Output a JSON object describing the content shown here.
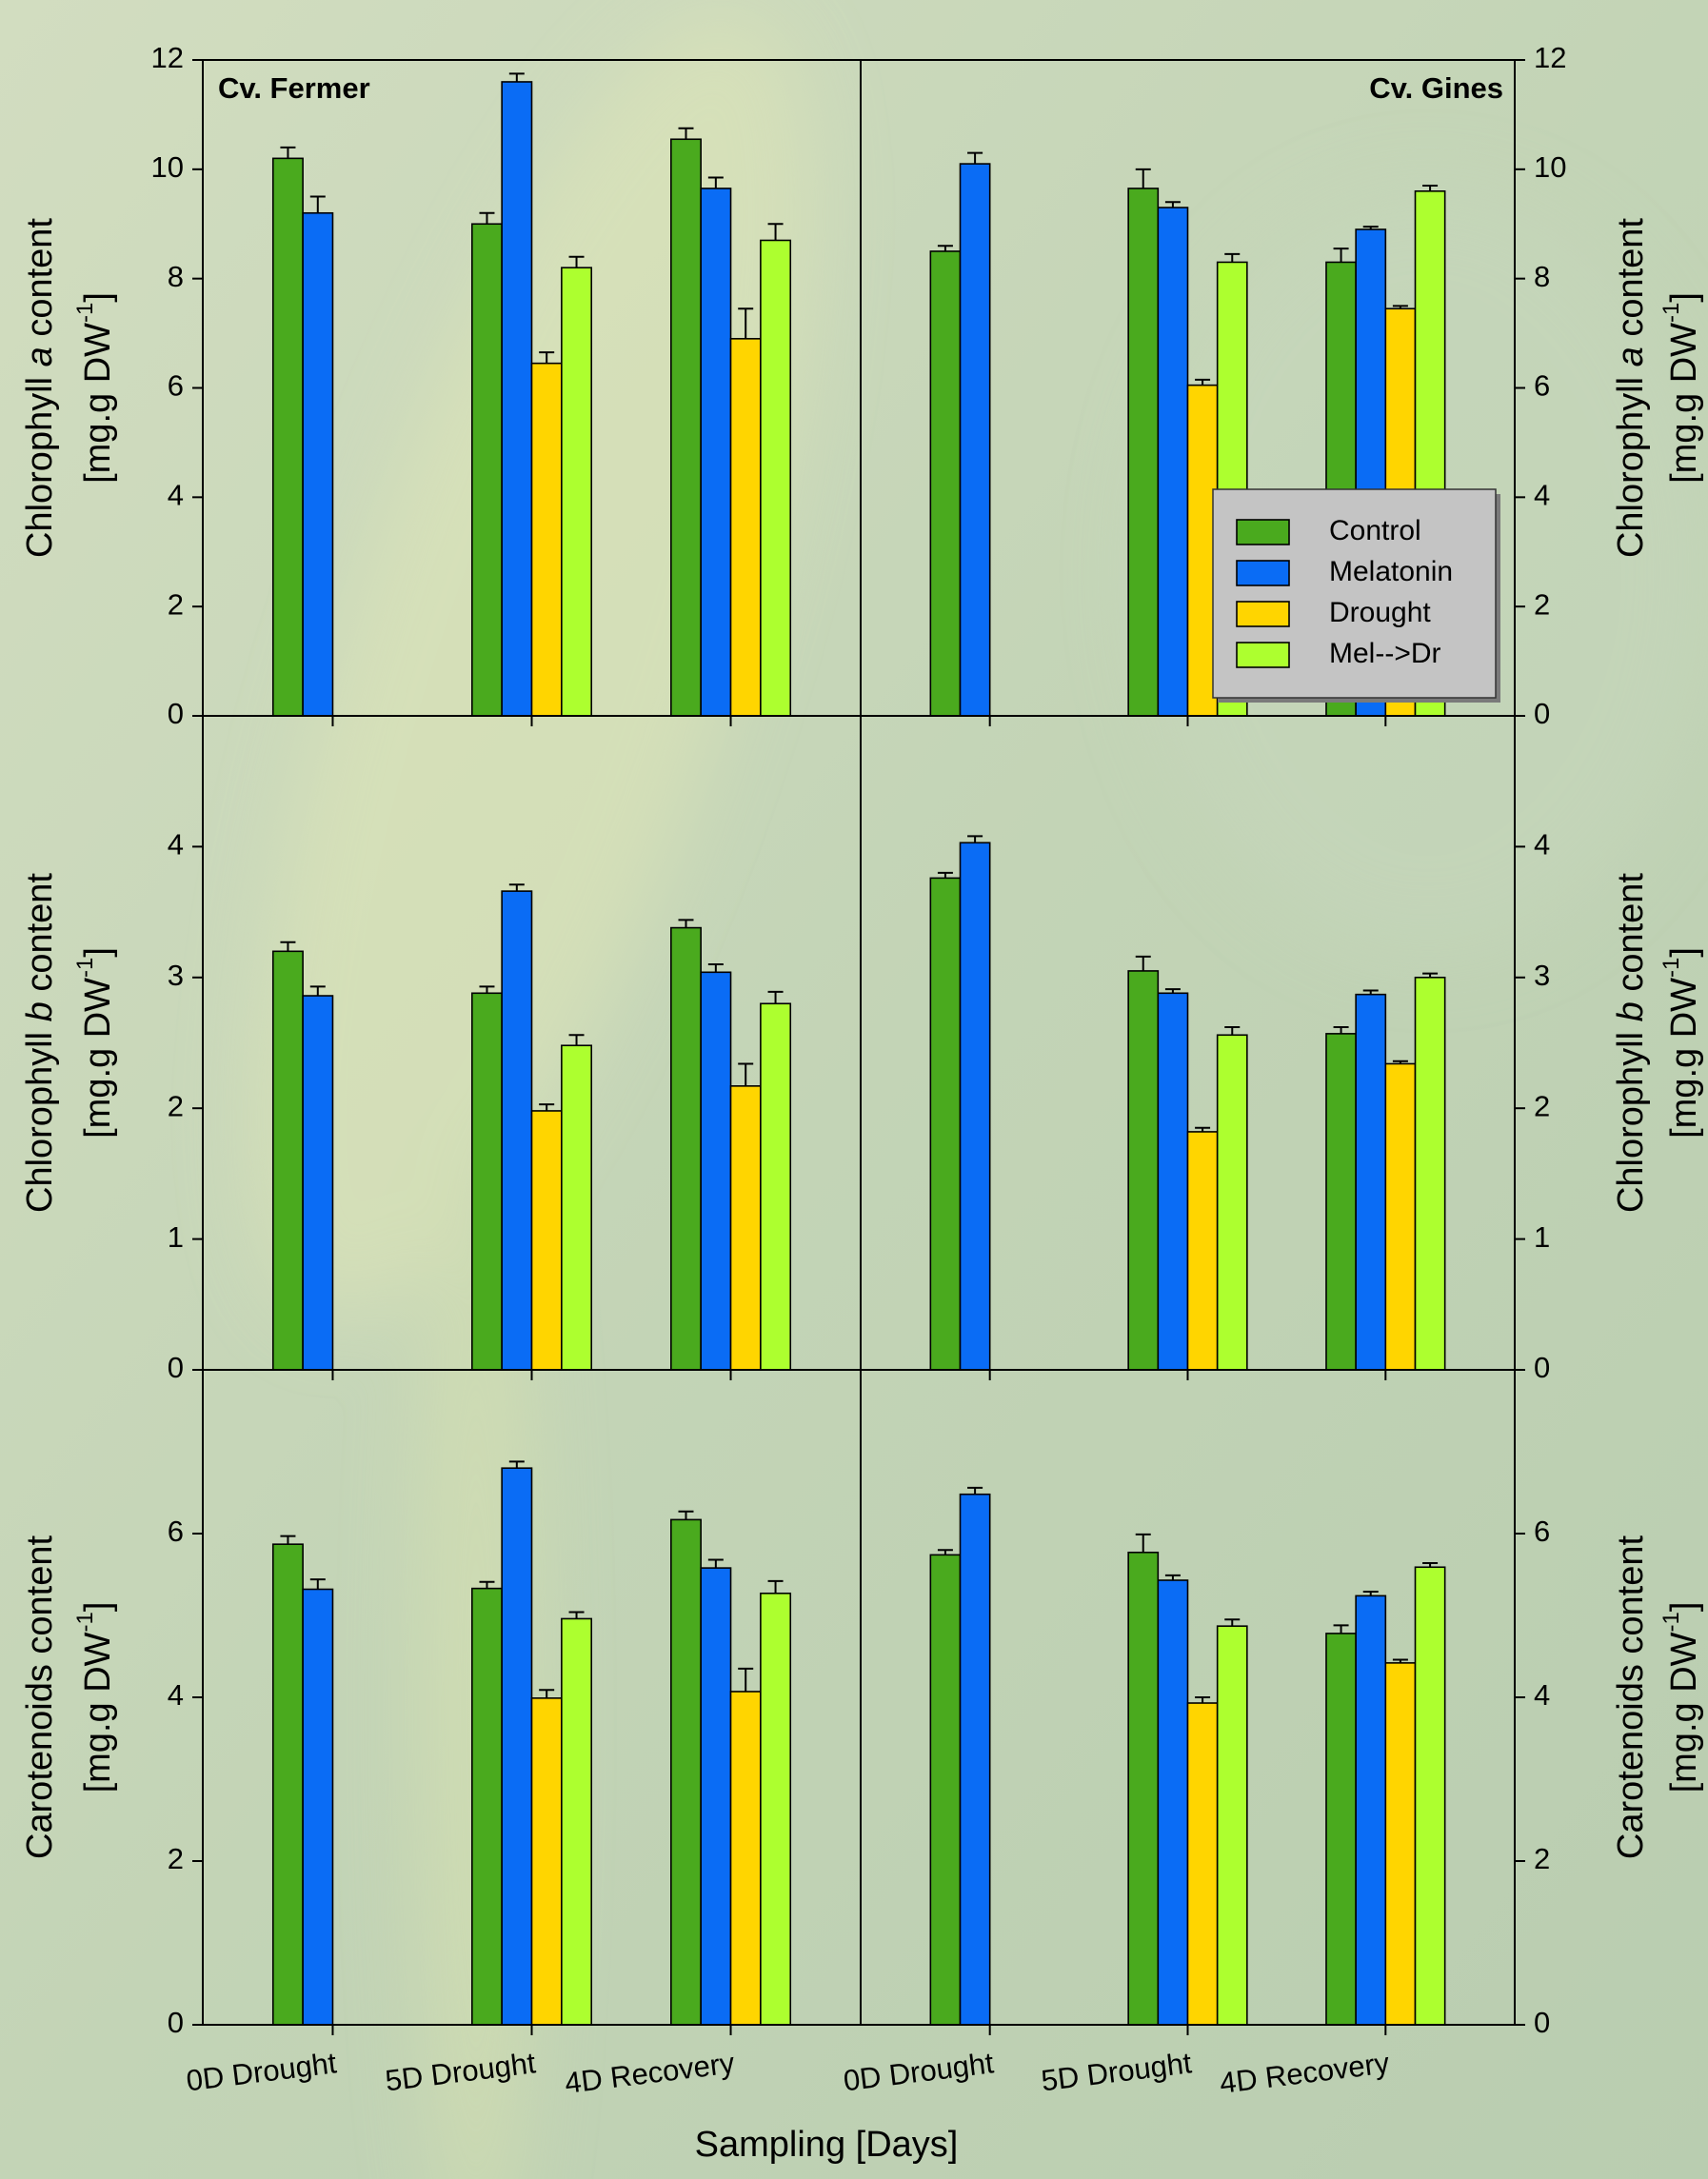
{
  "xlabel": "Sampling [Days]",
  "chart_data": [
    {
      "type": "bar",
      "title": "Cv. Fermer",
      "ylabel": [
        [
          "Chlorophyll ",
          "a",
          " content"
        ],
        [
          "[mg.g DW",
          "-1",
          "]"
        ]
      ],
      "ylim": [
        0,
        12
      ],
      "yticks": [
        0,
        2,
        4,
        6,
        8,
        10,
        12
      ],
      "series": [
        {
          "name": "Control",
          "color": "#4aaa1e",
          "values": [
            10.2,
            9.0,
            10.55
          ],
          "errors": [
            0.2,
            0.2,
            0.2
          ]
        },
        {
          "name": "Melatonin",
          "color": "#0a6cf5",
          "values": [
            9.2,
            11.6,
            9.65
          ],
          "errors": [
            0.3,
            0.15,
            0.2
          ]
        },
        {
          "name": "Drought",
          "color": "#ffd500",
          "values": [
            null,
            6.45,
            6.9
          ],
          "errors": [
            null,
            0.2,
            0.55
          ]
        },
        {
          "name": "Mel-->Dr",
          "color": "#adff2f",
          "values": [
            null,
            8.2,
            8.7
          ],
          "errors": [
            null,
            0.2,
            0.3
          ]
        }
      ]
    },
    {
      "type": "bar",
      "title": "Cv. Gines",
      "ylabel": [
        [
          "Chlorophyll ",
          "a",
          " content"
        ],
        [
          "[mg.g DW",
          "-1",
          "]"
        ]
      ],
      "ylim": [
        0,
        12
      ],
      "yticks": [
        0,
        2,
        4,
        6,
        8,
        10,
        12
      ],
      "legend": "lower right",
      "series": [
        {
          "name": "Control",
          "color": "#4aaa1e",
          "values": [
            8.5,
            9.65,
            8.3
          ],
          "errors": [
            0.1,
            0.35,
            0.25
          ]
        },
        {
          "name": "Melatonin",
          "color": "#0a6cf5",
          "values": [
            10.1,
            9.3,
            8.9
          ],
          "errors": [
            0.2,
            0.1,
            0.05
          ]
        },
        {
          "name": "Drought",
          "color": "#ffd500",
          "values": [
            null,
            6.05,
            7.45
          ],
          "errors": [
            null,
            0.1,
            0.05
          ]
        },
        {
          "name": "Mel-->Dr",
          "color": "#adff2f",
          "values": [
            null,
            8.3,
            9.6
          ],
          "errors": [
            null,
            0.15,
            0.1
          ]
        }
      ]
    },
    {
      "type": "bar",
      "ylabel": [
        [
          "Chlorophyll ",
          "b",
          " content"
        ],
        [
          "[mg.g DW",
          "-1",
          "]"
        ]
      ],
      "ylim": [
        0,
        5
      ],
      "yticks": [
        0,
        1,
        2,
        3,
        4
      ],
      "series": [
        {
          "name": "Control",
          "color": "#4aaa1e",
          "values": [
            3.2,
            2.88,
            3.38
          ],
          "errors": [
            0.07,
            0.05,
            0.06
          ]
        },
        {
          "name": "Melatonin",
          "color": "#0a6cf5",
          "values": [
            2.86,
            3.66,
            3.04
          ],
          "errors": [
            0.07,
            0.05,
            0.06
          ]
        },
        {
          "name": "Drought",
          "color": "#ffd500",
          "values": [
            null,
            1.98,
            2.17
          ],
          "errors": [
            null,
            0.05,
            0.17
          ]
        },
        {
          "name": "Mel-->Dr",
          "color": "#adff2f",
          "values": [
            null,
            2.48,
            2.8
          ],
          "errors": [
            null,
            0.08,
            0.09
          ]
        }
      ]
    },
    {
      "type": "bar",
      "ylabel": [
        [
          "Chlorophyll ",
          "b",
          " content"
        ],
        [
          "[mg.g DW",
          "-1",
          "]"
        ]
      ],
      "ylim": [
        0,
        5
      ],
      "yticks": [
        0,
        1,
        2,
        3,
        4
      ],
      "series": [
        {
          "name": "Control",
          "color": "#4aaa1e",
          "values": [
            3.76,
            3.05,
            2.57
          ],
          "errors": [
            0.04,
            0.11,
            0.05
          ]
        },
        {
          "name": "Melatonin",
          "color": "#0a6cf5",
          "values": [
            4.03,
            2.88,
            2.87
          ],
          "errors": [
            0.05,
            0.03,
            0.03
          ]
        },
        {
          "name": "Drought",
          "color": "#ffd500",
          "values": [
            null,
            1.82,
            2.34
          ],
          "errors": [
            null,
            0.03,
            0.02
          ]
        },
        {
          "name": "Mel-->Dr",
          "color": "#adff2f",
          "values": [
            null,
            2.56,
            3.0
          ],
          "errors": [
            null,
            0.06,
            0.03
          ]
        }
      ]
    },
    {
      "type": "bar",
      "categories": [
        "0D Drought",
        "5D Drought",
        "4D Recovery"
      ],
      "ylabel": [
        [
          "Carotenoids content"
        ],
        [
          "[mg.g DW",
          "-1",
          "]"
        ]
      ],
      "ylim": [
        0,
        8
      ],
      "yticks": [
        0,
        2,
        4,
        6
      ],
      "series": [
        {
          "name": "Control",
          "color": "#4aaa1e",
          "values": [
            5.87,
            5.33,
            6.17
          ],
          "errors": [
            0.1,
            0.08,
            0.1
          ]
        },
        {
          "name": "Melatonin",
          "color": "#0a6cf5",
          "values": [
            5.32,
            6.8,
            5.58
          ],
          "errors": [
            0.12,
            0.08,
            0.1
          ]
        },
        {
          "name": "Drought",
          "color": "#ffd500",
          "values": [
            null,
            3.99,
            4.07
          ],
          "errors": [
            null,
            0.1,
            0.28
          ]
        },
        {
          "name": "Mel-->Dr",
          "color": "#adff2f",
          "values": [
            null,
            4.96,
            5.27
          ],
          "errors": [
            null,
            0.08,
            0.15
          ]
        }
      ]
    },
    {
      "type": "bar",
      "categories": [
        "0D Drought",
        "5D Drought",
        "4D Recovery"
      ],
      "ylabel": [
        [
          "Carotenoids content"
        ],
        [
          "[mg.g DW",
          "-1",
          "]"
        ]
      ],
      "ylim": [
        0,
        8
      ],
      "yticks": [
        0,
        2,
        4,
        6
      ],
      "series": [
        {
          "name": "Control",
          "color": "#4aaa1e",
          "values": [
            5.74,
            5.77,
            4.78
          ],
          "errors": [
            0.06,
            0.22,
            0.1
          ]
        },
        {
          "name": "Melatonin",
          "color": "#0a6cf5",
          "values": [
            6.48,
            5.43,
            5.24
          ],
          "errors": [
            0.08,
            0.06,
            0.05
          ]
        },
        {
          "name": "Drought",
          "color": "#ffd500",
          "values": [
            null,
            3.93,
            4.42
          ],
          "errors": [
            null,
            0.07,
            0.04
          ]
        },
        {
          "name": "Mel-->Dr",
          "color": "#adff2f",
          "values": [
            null,
            4.87,
            5.59
          ],
          "errors": [
            null,
            0.08,
            0.05
          ]
        }
      ]
    }
  ]
}
